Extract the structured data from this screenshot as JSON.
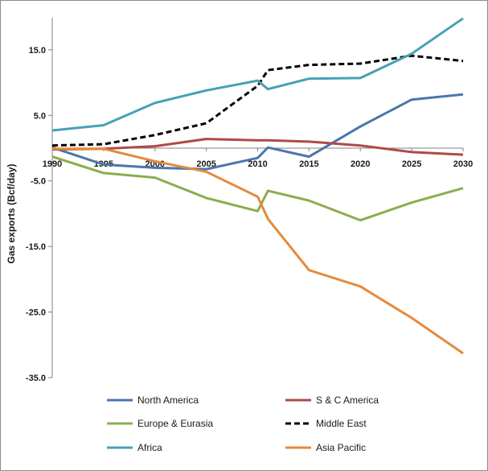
{
  "chart_data": {
    "type": "line",
    "title": "",
    "xlabel": "",
    "ylabel": "Gas exports (Bcf/day)",
    "x": [
      1990,
      1995,
      2000,
      2005,
      2010,
      2011,
      2015,
      2020,
      2025,
      2030
    ],
    "xticks": [
      "1990",
      "1995",
      "2000",
      "2005",
      "2010",
      "2015",
      "2020",
      "2025",
      "2030"
    ],
    "xtick_values": [
      1990,
      1995,
      2000,
      2005,
      2010,
      2015,
      2020,
      2025,
      2030
    ],
    "yticks": [
      "15.0",
      "5.0",
      "-5.0",
      "-15.0",
      "-25.0",
      "-35.0"
    ],
    "ytick_values": [
      15,
      5,
      -5,
      -15,
      -25,
      -35
    ],
    "ylim": [
      -35,
      20
    ],
    "xlim": [
      1990,
      2030
    ],
    "grid": false,
    "legend_position": "bottom",
    "series": [
      {
        "name": "North America",
        "color": "#4a76ae",
        "dash": false,
        "values": [
          0.1,
          -2.5,
          -3.0,
          -3.2,
          -1.5,
          0.1,
          -1.3,
          3.3,
          7.4,
          8.2
        ]
      },
      {
        "name": "S & C America",
        "color": "#b04a48",
        "dash": false,
        "values": [
          -0.2,
          -0.1,
          0.3,
          1.4,
          1.2,
          1.2,
          1.0,
          0.4,
          -0.6,
          -1.0
        ]
      },
      {
        "name": "Europe & Eurasia",
        "color": "#8cad4e",
        "dash": false,
        "values": [
          -1.3,
          -3.8,
          -4.5,
          -7.6,
          -9.6,
          -6.5,
          -8.0,
          -11.0,
          -8.3,
          -6.1
        ]
      },
      {
        "name": "Middle East",
        "color": "#000000",
        "dash": true,
        "values": [
          0.4,
          0.6,
          2.0,
          3.8,
          9.5,
          11.9,
          12.7,
          12.9,
          14.1,
          13.3
        ]
      },
      {
        "name": "Africa",
        "color": "#46a1b5",
        "dash": false,
        "values": [
          2.7,
          3.5,
          6.9,
          8.8,
          10.3,
          9.0,
          10.6,
          10.7,
          14.4,
          19.8
        ]
      },
      {
        "name": "Asia Pacific",
        "color": "#e48a3c",
        "dash": false,
        "values": [
          -0.1,
          -0.1,
          -2.0,
          -3.6,
          -7.4,
          -10.8,
          -18.6,
          -21.1,
          -25.9,
          -31.3
        ]
      }
    ]
  }
}
